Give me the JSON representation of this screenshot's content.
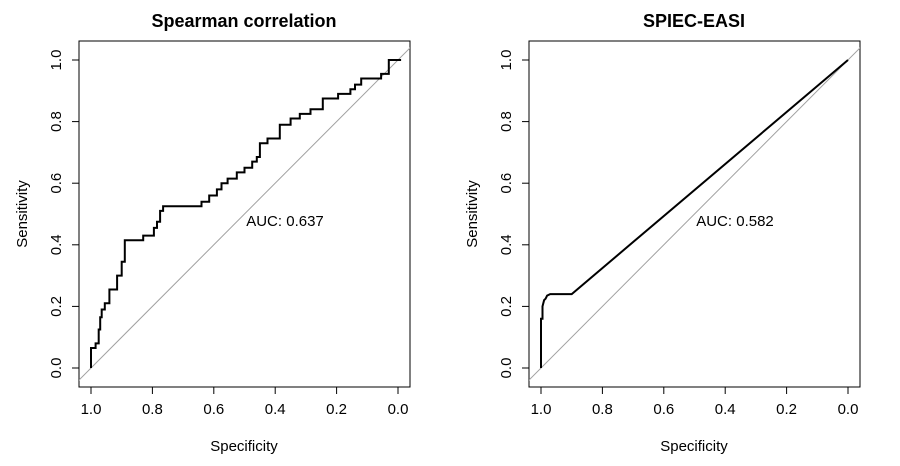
{
  "chart_data": [
    {
      "type": "line",
      "title": "Spearman correlation",
      "xlabel": "Specificity",
      "ylabel": "Sensitivity",
      "xlim": [
        1.0,
        0.0
      ],
      "ylim": [
        0.0,
        1.0
      ],
      "xticks": [
        "1.0",
        "0.8",
        "0.6",
        "0.4",
        "0.2",
        "0.0"
      ],
      "yticks": [
        "0.0",
        "0.2",
        "0.4",
        "0.6",
        "0.8",
        "1.0"
      ],
      "annotation": "AUC: 0.637",
      "reference_line": "diagonal",
      "line_color": "#000000",
      "reference_color": "#a0a0a0",
      "series": [
        {
          "values_x": [
            1.0,
            1.0,
            0.985,
            0.985,
            0.975,
            0.975,
            0.97,
            0.97,
            0.965,
            0.965,
            0.955,
            0.955,
            0.94,
            0.94,
            0.915,
            0.915,
            0.9,
            0.9,
            0.89,
            0.89,
            0.83,
            0.83,
            0.795,
            0.795,
            0.785,
            0.785,
            0.775,
            0.775,
            0.765,
            0.765,
            0.64,
            0.64,
            0.615,
            0.615,
            0.59,
            0.59,
            0.575,
            0.575,
            0.555,
            0.555,
            0.525,
            0.525,
            0.5,
            0.5,
            0.475,
            0.475,
            0.46,
            0.46,
            0.45,
            0.45,
            0.425,
            0.425,
            0.385,
            0.385,
            0.35,
            0.35,
            0.32,
            0.32,
            0.285,
            0.285,
            0.245,
            0.245,
            0.195,
            0.195,
            0.155,
            0.155,
            0.14,
            0.14,
            0.12,
            0.12,
            0.055,
            0.055,
            0.03,
            0.03,
            0.0,
            0.0,
            -0.01
          ],
          "values_y": [
            0.0,
            0.065,
            0.065,
            0.08,
            0.08,
            0.125,
            0.125,
            0.165,
            0.165,
            0.19,
            0.19,
            0.21,
            0.21,
            0.255,
            0.255,
            0.3,
            0.3,
            0.345,
            0.345,
            0.415,
            0.415,
            0.43,
            0.43,
            0.455,
            0.455,
            0.475,
            0.475,
            0.51,
            0.51,
            0.525,
            0.525,
            0.54,
            0.54,
            0.56,
            0.56,
            0.58,
            0.58,
            0.6,
            0.6,
            0.615,
            0.615,
            0.635,
            0.635,
            0.65,
            0.65,
            0.67,
            0.67,
            0.685,
            0.685,
            0.73,
            0.73,
            0.745,
            0.745,
            0.79,
            0.79,
            0.81,
            0.81,
            0.825,
            0.825,
            0.84,
            0.84,
            0.875,
            0.875,
            0.89,
            0.89,
            0.905,
            0.905,
            0.92,
            0.92,
            0.94,
            0.94,
            0.955,
            0.955,
            1.0,
            1.0,
            1.0,
            1.0
          ]
        }
      ]
    },
    {
      "type": "line",
      "title": "SPIEC-EASI",
      "xlabel": "Specificity",
      "ylabel": "Sensitivity",
      "xlim": [
        1.0,
        0.0
      ],
      "ylim": [
        0.0,
        1.0
      ],
      "xticks": [
        "1.0",
        "0.8",
        "0.6",
        "0.4",
        "0.2",
        "0.0"
      ],
      "yticks": [
        "0.0",
        "0.2",
        "0.4",
        "0.6",
        "0.8",
        "1.0"
      ],
      "annotation": "AUC: 0.582",
      "reference_line": "diagonal",
      "line_color": "#000000",
      "reference_color": "#a0a0a0",
      "series": [
        {
          "values_x": [
            1.0,
            1.0,
            0.995,
            0.995,
            0.99,
            0.985,
            0.98,
            0.97,
            0.9,
            0.0
          ],
          "values_y": [
            0.0,
            0.16,
            0.16,
            0.2,
            0.22,
            0.225,
            0.235,
            0.24,
            0.24,
            1.0
          ]
        }
      ]
    }
  ]
}
